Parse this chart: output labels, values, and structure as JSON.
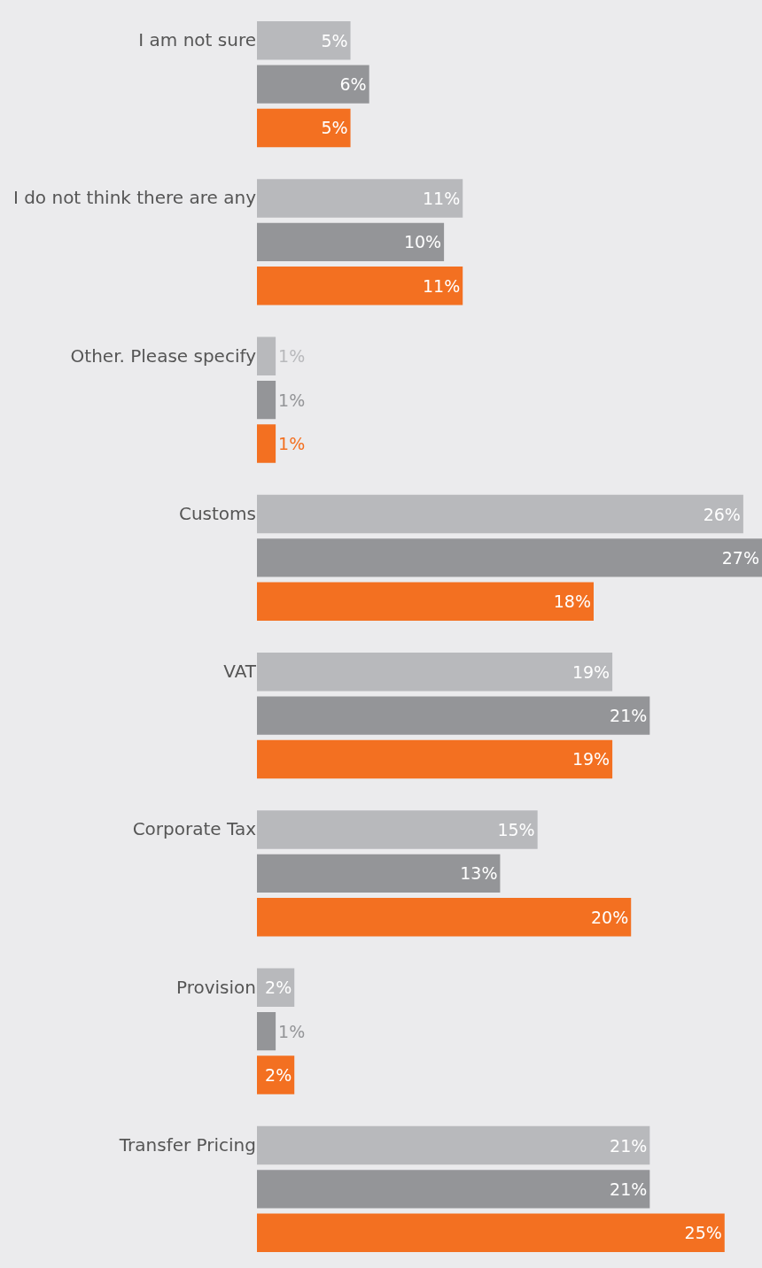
{
  "chart_data": {
    "type": "bar",
    "orientation": "horizontal",
    "categories": [
      "I am not sure",
      "I do not think there are any",
      "Other. Please specify",
      "Customs",
      "VAT",
      "Corporate Tax",
      "Provision",
      "Transfer Pricing"
    ],
    "series": [
      {
        "color": "#b8b9bc",
        "values": [
          5,
          11,
          1,
          26,
          19,
          15,
          2,
          21
        ],
        "value_labels": [
          "5%",
          "11%",
          "1%",
          "26%",
          "19%",
          "15%",
          "2%",
          "21%"
        ]
      },
      {
        "color": "#949598",
        "values": [
          6,
          10,
          1,
          27,
          21,
          13,
          1,
          21
        ],
        "value_labels": [
          "6%",
          "10%",
          "1%",
          "27%",
          "21%",
          "13%",
          "1%",
          "21%"
        ]
      },
      {
        "color": "#f37021",
        "values": [
          5,
          11,
          1,
          18,
          19,
          20,
          2,
          25
        ],
        "value_labels": [
          "5%",
          "11%",
          "1%",
          "18%",
          "19%",
          "20%",
          "2%",
          "25%"
        ]
      }
    ],
    "xlim": [
      0,
      27
    ]
  }
}
